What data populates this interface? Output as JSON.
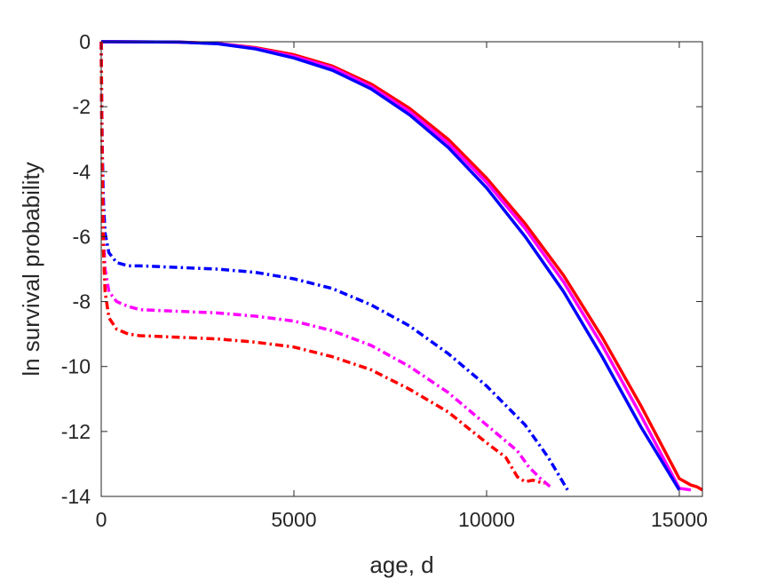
{
  "chart_data": {
    "type": "line",
    "xlabel": "age, d",
    "ylabel": "ln survival probability",
    "xlim": [
      0,
      15600
    ],
    "ylim": [
      -14,
      0
    ],
    "xticks": [
      0,
      5000,
      10000,
      15000
    ],
    "yticks": [
      0,
      -2,
      -4,
      -6,
      -8,
      -10,
      -12,
      -14
    ],
    "xtick_labels": [
      "0",
      "5000",
      "10000",
      "15000"
    ],
    "ytick_labels": [
      "0",
      "-2",
      "-4",
      "-6",
      "-8",
      "-10",
      "-12",
      "-14"
    ],
    "grid": false,
    "legend": "none",
    "series": [
      {
        "color": "#ff0000",
        "style": "solid",
        "x": [
          0,
          2000,
          3000,
          4000,
          5000,
          6000,
          7000,
          8000,
          9000,
          10000,
          11000,
          12000,
          13000,
          14000,
          15000,
          15300,
          15450,
          15600
        ],
        "y": [
          0,
          -0.01,
          -0.05,
          -0.18,
          -0.4,
          -0.75,
          -1.3,
          -2.05,
          -3.0,
          -4.2,
          -5.6,
          -7.2,
          -9.1,
          -11.2,
          -13.45,
          -13.65,
          -13.7,
          -13.8
        ]
      },
      {
        "color": "#ff00ff",
        "style": "solid",
        "x": [
          0,
          2000,
          3000,
          4000,
          5000,
          6000,
          7000,
          8000,
          9000,
          10000,
          11000,
          12000,
          13000,
          14000,
          15000,
          15300
        ],
        "y": [
          0,
          -0.01,
          -0.05,
          -0.2,
          -0.45,
          -0.8,
          -1.38,
          -2.15,
          -3.12,
          -4.33,
          -5.75,
          -7.4,
          -9.35,
          -11.5,
          -13.75,
          -13.8
        ]
      },
      {
        "color": "#0000ff",
        "style": "solid",
        "x": [
          0,
          2000,
          3000,
          4000,
          5000,
          6000,
          7000,
          8000,
          9000,
          10000,
          11000,
          12000,
          13000,
          14000,
          15000
        ],
        "y": [
          0,
          -0.01,
          -0.06,
          -0.22,
          -0.5,
          -0.88,
          -1.45,
          -2.25,
          -3.25,
          -4.5,
          -6.0,
          -7.7,
          -9.7,
          -11.85,
          -13.8
        ]
      },
      {
        "color": "#0000ff",
        "style": "dashdot",
        "x": [
          0,
          10,
          30,
          60,
          100,
          200,
          400,
          700,
          1000,
          2000,
          3000,
          4000,
          5000,
          6000,
          7000,
          8000,
          9000,
          10000,
          11000,
          11600,
          12100
        ],
        "y": [
          0,
          -1.5,
          -3.5,
          -5.0,
          -5.9,
          -6.5,
          -6.8,
          -6.9,
          -6.9,
          -6.95,
          -7.0,
          -7.1,
          -7.3,
          -7.6,
          -8.1,
          -8.75,
          -9.6,
          -10.6,
          -11.8,
          -12.8,
          -13.8
        ]
      },
      {
        "color": "#ff00ff",
        "style": "dashdot",
        "x": [
          0,
          10,
          30,
          60,
          100,
          200,
          400,
          700,
          1000,
          2000,
          3000,
          4000,
          5000,
          6000,
          7000,
          8000,
          9000,
          10000,
          10800,
          11100,
          11400,
          11700
        ],
        "y": [
          0,
          -1.8,
          -4.0,
          -6.0,
          -7.0,
          -7.7,
          -8.0,
          -8.15,
          -8.25,
          -8.3,
          -8.35,
          -8.45,
          -8.6,
          -8.9,
          -9.35,
          -10.0,
          -10.8,
          -11.8,
          -12.6,
          -13.1,
          -13.45,
          -13.75
        ]
      },
      {
        "color": "#ff0000",
        "style": "dashdot",
        "x": [
          0,
          10,
          30,
          60,
          100,
          200,
          400,
          700,
          1000,
          2000,
          3000,
          4000,
          5000,
          6000,
          7000,
          8000,
          9000,
          10000,
          10500,
          10800,
          11000,
          11200,
          11500
        ],
        "y": [
          0,
          -2.0,
          -4.5,
          -6.5,
          -7.7,
          -8.5,
          -8.85,
          -9.0,
          -9.05,
          -9.1,
          -9.15,
          -9.25,
          -9.4,
          -9.7,
          -10.1,
          -10.7,
          -11.4,
          -12.35,
          -12.8,
          -13.4,
          -13.55,
          -13.5,
          -13.6
        ]
      }
    ]
  }
}
